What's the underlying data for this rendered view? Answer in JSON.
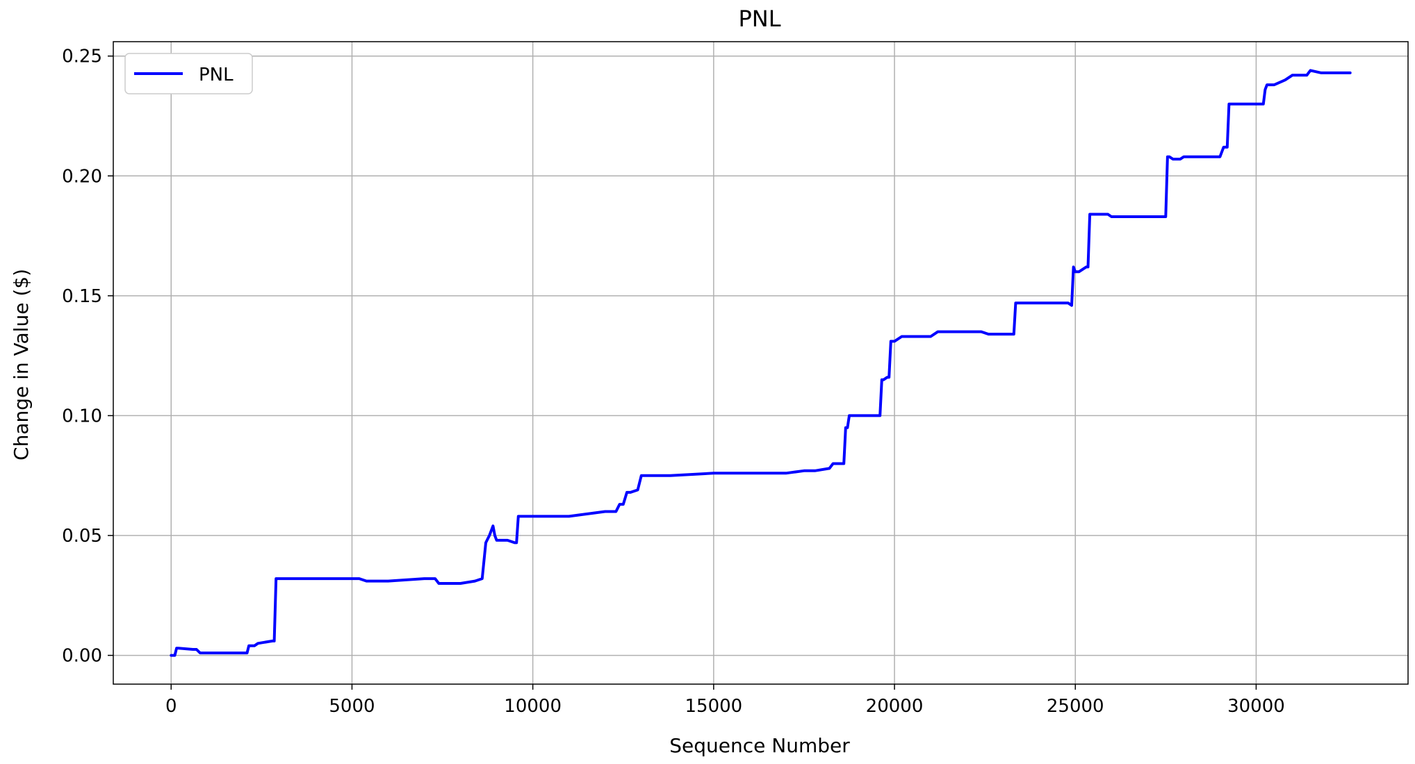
{
  "chart_data": {
    "type": "line",
    "title": "PNL",
    "xlabel": "Sequence Number",
    "ylabel": "Change in Value ($)",
    "xlim": [
      -1600,
      34200
    ],
    "ylim": [
      -0.012,
      0.256
    ],
    "x_ticks": [
      0,
      5000,
      10000,
      15000,
      20000,
      25000,
      30000
    ],
    "x_tick_labels": [
      "0",
      "5000",
      "10000",
      "15000",
      "20000",
      "25000",
      "30000"
    ],
    "y_ticks": [
      0.0,
      0.05,
      0.1,
      0.15,
      0.2,
      0.25
    ],
    "y_tick_labels": [
      "0.00",
      "0.05",
      "0.10",
      "0.15",
      "0.20",
      "0.25"
    ],
    "grid": true,
    "legend_position": "top-left",
    "series": [
      {
        "name": "PNL",
        "color": "#0000ff",
        "x": [
          0,
          100,
          150,
          200,
          600,
          700,
          800,
          1300,
          2100,
          2150,
          2300,
          2400,
          2800,
          2850,
          2900,
          5200,
          5400,
          6000,
          7000,
          7300,
          7400,
          8000,
          8400,
          8600,
          8700,
          8800,
          8900,
          8950,
          9000,
          9300,
          9500,
          9550,
          9600,
          10000,
          11000,
          12000,
          12300,
          12400,
          12500,
          12600,
          12700,
          12900,
          13000,
          13800,
          15000,
          16000,
          17000,
          17500,
          17800,
          18200,
          18300,
          18600,
          18650,
          18700,
          18750,
          19600,
          19650,
          19700,
          19800,
          19850,
          19900,
          20000,
          20200,
          21000,
          21200,
          22400,
          22600,
          23300,
          23350,
          23400,
          24800,
          24900,
          24950,
          25000,
          25100,
          25300,
          25350,
          25400,
          25900,
          26000,
          27500,
          27550,
          27600,
          27700,
          27900,
          28000,
          28500,
          29000,
          29100,
          29200,
          29250,
          29300,
          29400,
          30200,
          30250,
          30300,
          30500,
          30800,
          31000,
          31400,
          31500,
          31800,
          32600
        ],
        "y": [
          0.0,
          0.0,
          0.003,
          0.003,
          0.0025,
          0.0025,
          0.001,
          0.001,
          0.001,
          0.004,
          0.004,
          0.005,
          0.006,
          0.006,
          0.032,
          0.032,
          0.031,
          0.031,
          0.032,
          0.032,
          0.03,
          0.03,
          0.031,
          0.032,
          0.047,
          0.05,
          0.054,
          0.05,
          0.048,
          0.048,
          0.047,
          0.047,
          0.058,
          0.058,
          0.058,
          0.06,
          0.06,
          0.063,
          0.063,
          0.068,
          0.068,
          0.069,
          0.075,
          0.075,
          0.076,
          0.076,
          0.076,
          0.077,
          0.077,
          0.078,
          0.08,
          0.08,
          0.095,
          0.095,
          0.1,
          0.1,
          0.115,
          0.115,
          0.116,
          0.116,
          0.131,
          0.131,
          0.133,
          0.133,
          0.135,
          0.135,
          0.134,
          0.134,
          0.147,
          0.147,
          0.147,
          0.146,
          0.162,
          0.16,
          0.16,
          0.162,
          0.162,
          0.184,
          0.184,
          0.183,
          0.183,
          0.208,
          0.208,
          0.207,
          0.207,
          0.208,
          0.208,
          0.208,
          0.212,
          0.212,
          0.23,
          0.23,
          0.23,
          0.23,
          0.236,
          0.238,
          0.238,
          0.24,
          0.242,
          0.242,
          0.244,
          0.243,
          0.243
        ]
      }
    ]
  }
}
